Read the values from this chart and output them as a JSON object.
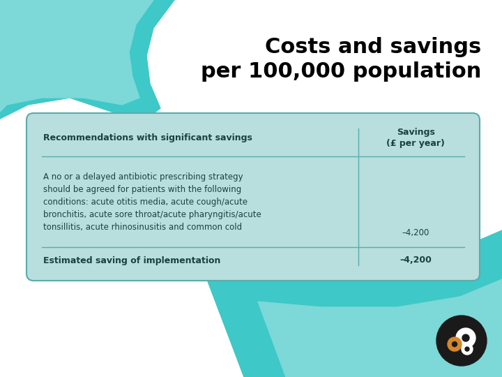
{
  "title_line1": "Costs and savings",
  "title_line2": "per 100,000 population",
  "title_fontsize": 22,
  "title_color": "#000000",
  "bg_color": "#ffffff",
  "teal_dark": "#2ab5b5",
  "teal_mid": "#3ec8c8",
  "teal_light": "#7dd8d8",
  "table_bg": "#b8dede",
  "table_border_color": "#5aacac",
  "header_col1": "Recommendations with significant savings",
  "header_col2": "Savings\n(£ per year)",
  "row1_col1": "A no or a delayed antibiotic prescribing strategy\nshould be agreed for patients with the following\nconditions: acute otitis media, acute cough/acute\nbronchitis, acute sore throat/acute pharyngitis/acute\ntonsillitis, acute rhinosinusitis and common cold",
  "row1_col2": "–4,200",
  "row2_col1": "Estimated saving of implementation",
  "row2_col2": "–4,200",
  "text_color": "#1a4040",
  "header_fontsize": 9,
  "body_fontsize": 8.5,
  "footer_fontsize": 9,
  "logo_bg": "#1a1a1a",
  "logo_gear_gold": "#d4882a",
  "logo_gear_white": "#ffffff"
}
